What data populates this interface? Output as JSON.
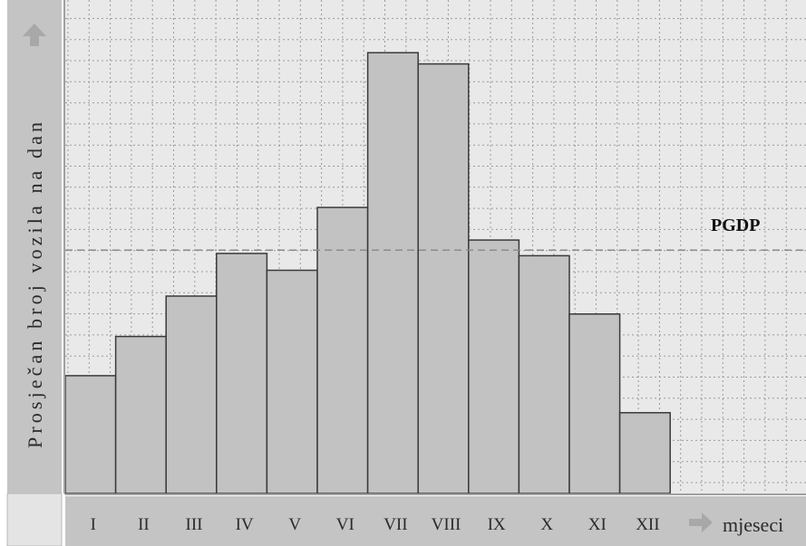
{
  "chart_data": {
    "type": "bar",
    "title": "",
    "ylabel": "Prosječan broj vozila na dan",
    "xlabel": "mjeseci",
    "categories": [
      "I",
      "II",
      "III",
      "IV",
      "V",
      "VI",
      "VII",
      "VIII",
      "IX",
      "X",
      "XI",
      "XII"
    ],
    "values": [
      10.5,
      14.0,
      17.6,
      21.4,
      19.9,
      25.5,
      39.3,
      38.3,
      22.6,
      21.2,
      16.0,
      7.2
    ],
    "ylim": [
      0,
      44
    ],
    "grid": true,
    "reference_line": {
      "label": "PGDP",
      "value": 21.7
    },
    "colors": {
      "bar_fill": "#c2c2c2",
      "bar_stroke": "#3a3a3a",
      "plot_background": "#e9e9e9",
      "panel": "#c4c4c4"
    }
  },
  "icons": {
    "y_axis_arrow": "arrow-up-icon",
    "x_axis_arrow": "arrow-right-icon"
  }
}
